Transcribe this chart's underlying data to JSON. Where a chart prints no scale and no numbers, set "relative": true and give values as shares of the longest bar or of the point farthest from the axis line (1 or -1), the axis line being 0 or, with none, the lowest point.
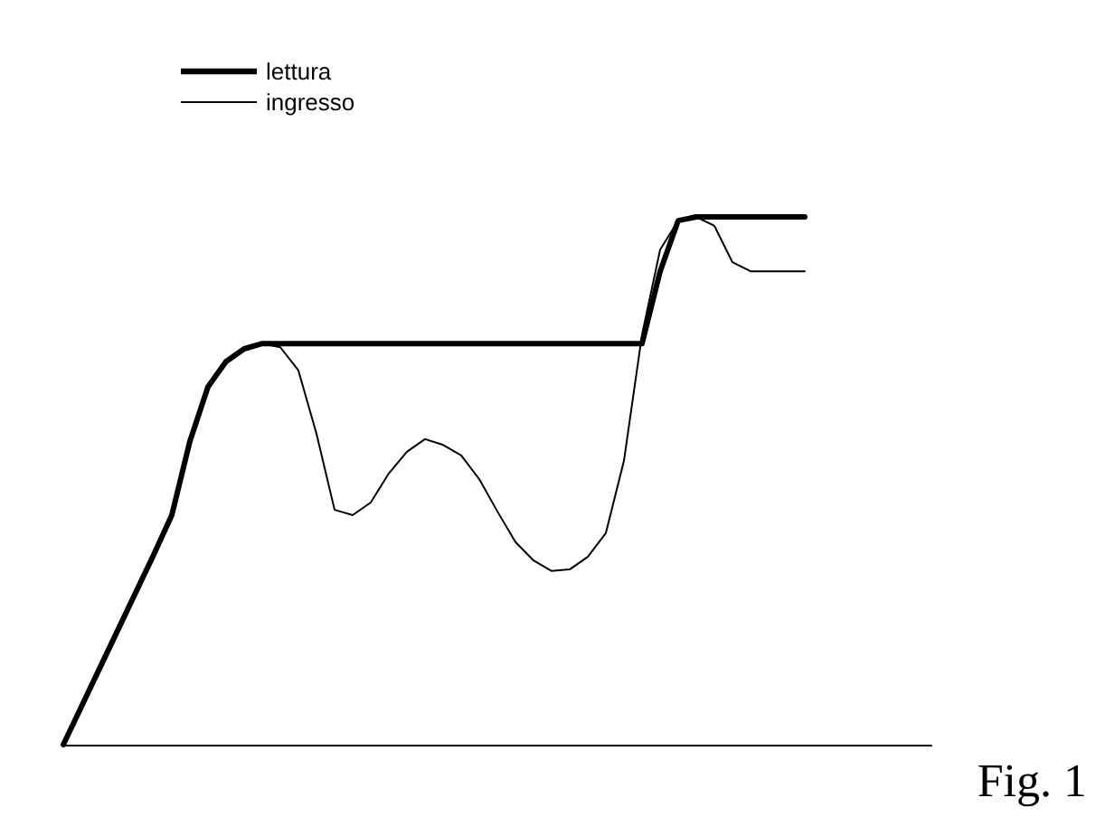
{
  "chart_data": {
    "type": "line",
    "relative": true,
    "legend": "top left",
    "marker": "none",
    "grid": false,
    "tick_labels": false,
    "annotations": [
      "Fig. 1"
    ],
    "categories": [
      null,
      null,
      null,
      null,
      null,
      null,
      null,
      null,
      null,
      null,
      null,
      null,
      null,
      null,
      null,
      null,
      null,
      null,
      null,
      null,
      null,
      null,
      null,
      null,
      null,
      null,
      null,
      null,
      null,
      null,
      null,
      null,
      null,
      null,
      null,
      null,
      null,
      null,
      null,
      null,
      null,
      null,
      null,
      null,
      null,
      null,
      null,
      null,
      null
    ],
    "series": [
      {
        "name": "lettura",
        "color": "#000000",
        "values": [
          0,
          0.072,
          0.144,
          0.216,
          0.288,
          0.36,
          0.435,
          0.575,
          0.678,
          0.726,
          0.75,
          0.76,
          0.76,
          0.76,
          0.76,
          0.76,
          0.76,
          0.76,
          0.76,
          0.76,
          0.76,
          0.76,
          0.76,
          0.76,
          0.76,
          0.76,
          0.76,
          0.76,
          0.76,
          0.76,
          0.76,
          0.76,
          0.76,
          0.897,
          0.993,
          1,
          1,
          1,
          1,
          1,
          1,
          1,
          null,
          null,
          null,
          null,
          null,
          null,
          null
        ]
      },
      {
        "name": "ingresso",
        "color": "#000000",
        "values": [
          0,
          0.072,
          0.144,
          0.216,
          0.288,
          0.36,
          0.435,
          0.575,
          0.678,
          0.726,
          0.75,
          0.76,
          0.753,
          0.709,
          0.589,
          0.445,
          0.435,
          0.459,
          0.514,
          0.555,
          0.579,
          0.568,
          0.548,
          0.503,
          0.442,
          0.384,
          0.349,
          0.329,
          0.332,
          0.356,
          0.401,
          0.538,
          0.777,
          0.938,
          0.993,
          1,
          0.983,
          0.914,
          0.897,
          0.897,
          0.897,
          0.897,
          null,
          null,
          null,
          null,
          null,
          null,
          null
        ]
      }
    ]
  }
}
